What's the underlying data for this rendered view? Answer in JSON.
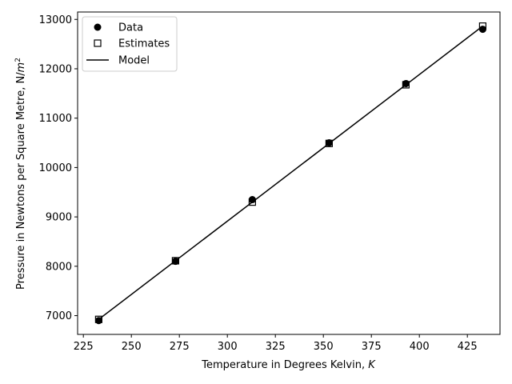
{
  "chart_data": {
    "type": "scatter",
    "title": "",
    "xlabel": "Temperature in Degrees Kelvin, ",
    "xlabel_var": "K",
    "ylabel": "Pressure in Newtons per Square Metre, N/",
    "ylabel_var": "m",
    "ylabel_sup": "2",
    "xlim": [
      222,
      442
    ],
    "ylim": [
      6620,
      13150
    ],
    "xticks": [
      225,
      250,
      275,
      300,
      325,
      350,
      375,
      400,
      425
    ],
    "yticks": [
      7000,
      8000,
      9000,
      10000,
      11000,
      12000,
      13000
    ],
    "legend_position": "upper-left",
    "series": [
      {
        "name": "Data",
        "marker": "circle",
        "x": [
          233,
          273,
          313,
          353,
          393,
          433
        ],
        "y": [
          6900,
          8100,
          9350,
          10500,
          11700,
          12800
        ]
      },
      {
        "name": "Estimates",
        "marker": "square-open",
        "x": [
          233,
          273,
          313,
          353,
          393,
          433
        ],
        "y": [
          6924,
          8112,
          9300,
          10488,
          11676,
          12864
        ]
      },
      {
        "name": "Model",
        "marker": "line",
        "x": [
          233,
          433
        ],
        "y": [
          6924,
          12864
        ]
      }
    ],
    "colors": {
      "marker": "#000000",
      "line": "#000000"
    }
  }
}
